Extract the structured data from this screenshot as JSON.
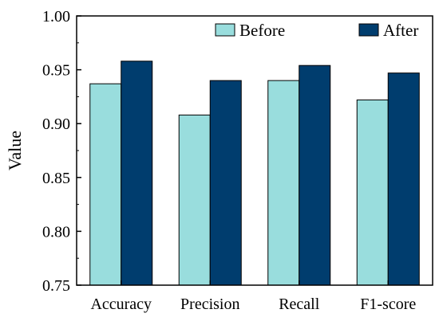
{
  "chart_data": {
    "type": "bar",
    "categories": [
      "Accuracy",
      "Precision",
      "Recall",
      "F1-score"
    ],
    "series": [
      {
        "name": "Before",
        "values": [
          0.937,
          0.908,
          0.94,
          0.922
        ],
        "color": "#99dddd"
      },
      {
        "name": "After",
        "values": [
          0.958,
          0.94,
          0.954,
          0.947
        ],
        "color": "#003d6e"
      }
    ],
    "title": "",
    "xlabel": "",
    "ylabel": "Value",
    "ylim": [
      0.75,
      1.0
    ],
    "yticks": [
      0.75,
      0.8,
      0.85,
      0.9,
      0.95,
      1.0
    ],
    "ytick_labels": [
      "0.75",
      "0.80",
      "0.85",
      "0.90",
      "0.95",
      "1.00"
    ],
    "grid": false,
    "legend_position": "top-right"
  }
}
